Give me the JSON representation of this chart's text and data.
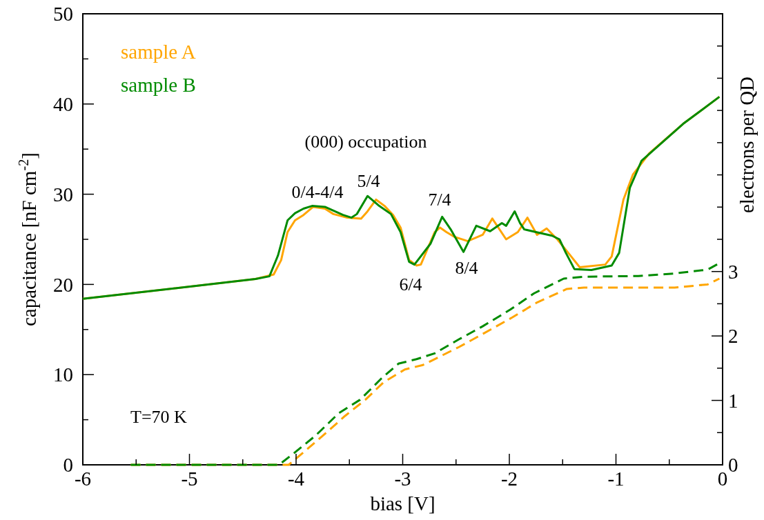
{
  "chart_data": {
    "type": "line",
    "xlabel": "bias [V]",
    "ylabel": "capacitance [nF cm$^{-2}$]",
    "y2label": "electrons per QD",
    "xlim": [
      -6,
      0
    ],
    "xticks": [
      -6,
      {
        "value": -5.5,
        "label": null
      },
      -5,
      {
        "value": -4.5,
        "label": null
      },
      -4,
      {
        "value": -3.5,
        "label": null
      },
      -3,
      {
        "value": -2.5,
        "label": null
      },
      -2,
      {
        "value": -1.5,
        "label": null
      },
      -1,
      {
        "value": -0.5,
        "label": null
      },
      0
    ],
    "ylim": [
      0,
      50
    ],
    "yticks": [
      0,
      {
        "value": 5,
        "label": null
      },
      10,
      {
        "value": 15,
        "label": null
      },
      20,
      {
        "value": 25,
        "label": null
      },
      30,
      {
        "value": 35,
        "label": null
      },
      40,
      {
        "value": 45,
        "label": null
      },
      50
    ],
    "y2lim": [
      0,
      7
    ],
    "y2ticks": [
      0,
      {
        "value": 0.5,
        "label": null
      },
      1,
      {
        "value": 1.5,
        "label": null
      },
      2,
      {
        "value": 2.5,
        "label": null
      },
      3,
      {
        "value": 3.5,
        "label": null
      },
      {
        "value": 4,
        "label": null
      },
      {
        "value": 4.5,
        "label": null
      },
      {
        "value": 5,
        "label": null
      },
      {
        "value": 5.5,
        "label": null
      },
      {
        "value": 6,
        "label": null
      },
      {
        "value": 6.5,
        "label": null
      },
      {
        "value": 7,
        "label": null
      }
    ],
    "legend": "top left",
    "grid": false,
    "series": [
      {
        "name": "sample A",
        "color": "#ffa500",
        "line_style": "solid",
        "x": [
          -6,
          -4.38,
          -4.21,
          -4.14,
          -4.08,
          -4.01,
          -3.93,
          -3.84,
          -3.73,
          -3.65,
          -3.52,
          -3.39,
          -3.33,
          -3.25,
          -3.17,
          -3.09,
          -3.02,
          -2.94,
          -2.87,
          -2.83,
          -2.7,
          -2.65,
          -2.59,
          -2.52,
          -2.39,
          -2.31,
          -2.25,
          -2.16,
          -2.03,
          -1.92,
          -1.83,
          -1.74,
          -1.65,
          -1.55,
          -1.42,
          -1.34,
          -1.1,
          -1.04,
          -0.93,
          -0.84,
          -0.69,
          -0.37,
          -0.03
        ],
        "values": [
          18.4,
          20.6,
          21.1,
          22.7,
          25.8,
          27.1,
          27.7,
          28.6,
          28.4,
          27.8,
          27.4,
          27.3,
          28.1,
          29.4,
          28.7,
          27.7,
          26.3,
          22.7,
          22.1,
          22.2,
          25.8,
          26.3,
          25.8,
          25.3,
          24.8,
          25.2,
          25.5,
          27.3,
          25.0,
          25.8,
          27.4,
          25.5,
          26.2,
          25.0,
          23.1,
          21.9,
          22.2,
          23.1,
          29.4,
          32.2,
          34.5,
          37.8,
          40.8
        ]
      },
      {
        "name": "sample B",
        "color": "#008b00",
        "line_style": "solid",
        "x": [
          -6,
          -4.38,
          -4.25,
          -4.17,
          -4.08,
          -4.01,
          -3.93,
          -3.85,
          -3.73,
          -3.56,
          -3.48,
          -3.43,
          -3.33,
          -3.22,
          -3.11,
          -3.02,
          -2.94,
          -2.89,
          -2.74,
          -2.63,
          -2.55,
          -2.43,
          -2.31,
          -2.18,
          -2.07,
          -2.03,
          -1.95,
          -1.9,
          -1.86,
          -1.75,
          -1.6,
          -1.53,
          -1.47,
          -1.39,
          -1.23,
          -1.04,
          -0.97,
          -0.87,
          -0.76,
          -0.37,
          -0.03
        ],
        "values": [
          18.4,
          20.6,
          20.9,
          23.2,
          27.1,
          27.9,
          28.4,
          28.7,
          28.6,
          27.7,
          27.4,
          27.8,
          29.8,
          28.7,
          27.8,
          25.8,
          22.5,
          22.2,
          24.5,
          27.5,
          26.1,
          23.6,
          26.5,
          25.9,
          26.8,
          26.5,
          28.1,
          26.8,
          26.1,
          25.8,
          25.4,
          25.0,
          23.5,
          21.7,
          21.6,
          22.1,
          23.5,
          30.7,
          33.7,
          37.8,
          40.8
        ]
      },
      {
        "color": "#ffa500",
        "axis": "y2",
        "line_style": "dashed",
        "x": [
          -5.55,
          -4.07,
          -3.94,
          -3.73,
          -3.54,
          -3.35,
          -3.18,
          -2.98,
          -2.81,
          -2.64,
          -2.47,
          -2.25,
          -1.97,
          -1.74,
          -1.46,
          -1.3,
          -0.45,
          -0.14,
          -0.03
        ],
        "values": [
          0,
          0,
          0.18,
          0.48,
          0.76,
          1.01,
          1.28,
          1.48,
          1.55,
          1.69,
          1.83,
          2.03,
          2.29,
          2.52,
          2.73,
          2.75,
          2.75,
          2.8,
          2.89
        ]
      },
      {
        "color": "#008b00",
        "axis": "y2",
        "line_style": "dashed",
        "x": [
          -5.55,
          -4.16,
          -4.02,
          -3.82,
          -3.6,
          -3.4,
          -3.2,
          -3.04,
          -2.87,
          -2.7,
          -2.47,
          -2.25,
          -1.99,
          -1.77,
          -1.49,
          -1.3,
          -0.79,
          -0.45,
          -0.14,
          -0.03
        ],
        "values": [
          0,
          0,
          0.18,
          0.45,
          0.8,
          1.01,
          1.34,
          1.57,
          1.64,
          1.73,
          1.95,
          2.15,
          2.41,
          2.66,
          2.89,
          2.92,
          2.93,
          2.97,
          3.03,
          3.13
        ]
      }
    ],
    "annotations": [
      "(000) occupation",
      "T=70 K",
      "0/4-4/4",
      "5/4",
      "6/4",
      "7/4",
      "8/4"
    ]
  }
}
